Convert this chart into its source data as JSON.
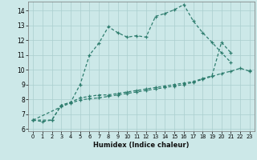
{
  "xlabel": "Humidex (Indice chaleur)",
  "background_color": "#cce8e8",
  "grid_color": "#aacece",
  "line_color": "#2e7d6e",
  "xlim_min": -0.5,
  "xlim_max": 23.5,
  "ylim_min": 5.85,
  "ylim_max": 14.6,
  "yticks": [
    6,
    7,
    8,
    9,
    10,
    11,
    12,
    13,
    14
  ],
  "xticks": [
    0,
    1,
    2,
    3,
    4,
    5,
    6,
    7,
    8,
    9,
    10,
    11,
    12,
    13,
    14,
    15,
    16,
    17,
    18,
    19,
    20,
    21,
    22,
    23
  ],
  "line1_x": [
    0,
    1,
    2,
    3,
    4,
    5,
    6,
    7,
    8,
    9,
    10,
    11,
    12,
    13,
    14,
    15,
    16,
    17,
    18,
    19,
    20,
    21
  ],
  "line1_y": [
    6.6,
    6.5,
    6.6,
    7.6,
    7.8,
    9.0,
    11.0,
    11.8,
    12.9,
    12.5,
    12.2,
    12.3,
    12.2,
    13.6,
    13.8,
    14.05,
    14.4,
    13.3,
    12.5,
    11.85,
    11.15,
    10.5
  ],
  "line2_x": [
    0,
    2,
    3,
    4,
    5,
    6,
    7,
    8,
    9,
    10,
    11,
    12,
    13,
    14,
    15,
    16,
    17,
    18,
    19,
    20,
    21,
    22,
    23
  ],
  "line2_y": [
    6.6,
    6.6,
    7.6,
    7.8,
    8.1,
    8.2,
    8.3,
    8.3,
    8.4,
    8.5,
    8.6,
    8.7,
    8.8,
    8.9,
    9.0,
    9.1,
    9.2,
    9.4,
    9.6,
    11.85,
    11.15,
    null,
    9.95
  ],
  "line3_x": [
    0,
    3,
    4,
    5,
    6,
    7,
    8,
    9,
    10,
    11,
    12,
    13,
    14,
    15,
    16,
    17,
    18,
    19,
    20,
    21,
    22,
    23
  ],
  "line3_y": [
    6.6,
    7.5,
    7.75,
    7.95,
    8.05,
    8.1,
    8.2,
    8.3,
    8.4,
    8.5,
    8.6,
    8.7,
    8.8,
    8.9,
    9.0,
    9.15,
    9.35,
    9.55,
    9.75,
    9.9,
    10.1,
    9.9
  ]
}
